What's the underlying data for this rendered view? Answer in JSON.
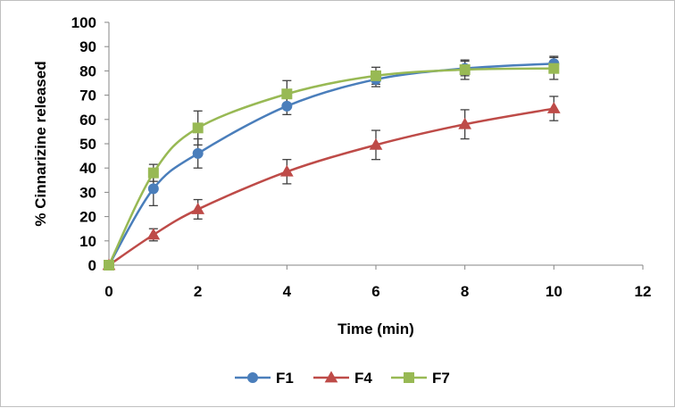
{
  "chart_data": {
    "type": "line",
    "xlabel": "Time (min)",
    "ylabel": "% Cinnarizine released",
    "xlim": [
      0,
      12
    ],
    "ylim": [
      0,
      100
    ],
    "xticks": [
      0,
      2,
      4,
      6,
      8,
      10,
      12
    ],
    "yticks": [
      0,
      10,
      20,
      30,
      40,
      50,
      60,
      70,
      80,
      90,
      100
    ],
    "grid": false,
    "legend_position": "bottom",
    "x": [
      0,
      1,
      2,
      4,
      6,
      8,
      10
    ],
    "series": [
      {
        "name": "F1",
        "marker": "circle",
        "color": "#4a7ebb",
        "values": [
          0,
          31.5,
          46,
          65.5,
          76.5,
          81,
          83
        ],
        "errors": [
          0,
          7,
          6,
          3.5,
          3,
          3,
          3
        ]
      },
      {
        "name": "F4",
        "marker": "triangle",
        "color": "#be4b48",
        "values": [
          0,
          12.5,
          23,
          38.5,
          49.5,
          58,
          64.5
        ],
        "errors": [
          0,
          2.5,
          4,
          5,
          6,
          6,
          5
        ]
      },
      {
        "name": "F7",
        "marker": "square",
        "color": "#98b954",
        "values": [
          0,
          38,
          56.5,
          70.5,
          78,
          80.5,
          81
        ],
        "errors": [
          0,
          3.5,
          7,
          5.5,
          3.5,
          4,
          4.5
        ]
      }
    ]
  }
}
